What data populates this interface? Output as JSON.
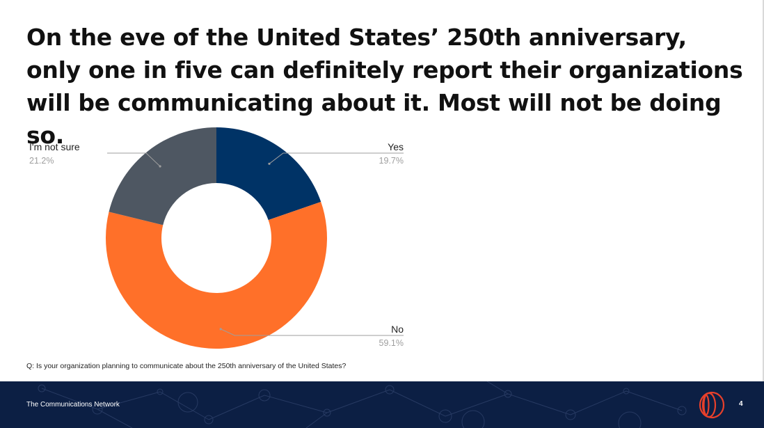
{
  "slide": {
    "title": "On the eve of the United States’ 250th anniversary, only one in five can definitely report their organizations will be communicating about it. Most will not be doing so.",
    "question": "Q: Is your organization planning to communicate about the 250th anniversary of the United States?",
    "footer_brand": "The Communications Network",
    "page_number": "4"
  },
  "chart_data": {
    "type": "pie",
    "donut": true,
    "title": "",
    "slices": [
      {
        "label": "Yes",
        "value": 19.7,
        "value_label": "19.7%",
        "color": "#003366"
      },
      {
        "label": "No",
        "value": 59.1,
        "value_label": "59.1%",
        "color": "#ff7029"
      },
      {
        "label": "I'm not sure",
        "value": 21.2,
        "value_label": "21.2%",
        "color": "#4e5762"
      }
    ],
    "legend": "none"
  },
  "colors": {
    "footer_bg": "#0c1f44",
    "logo": "#e8402b"
  }
}
